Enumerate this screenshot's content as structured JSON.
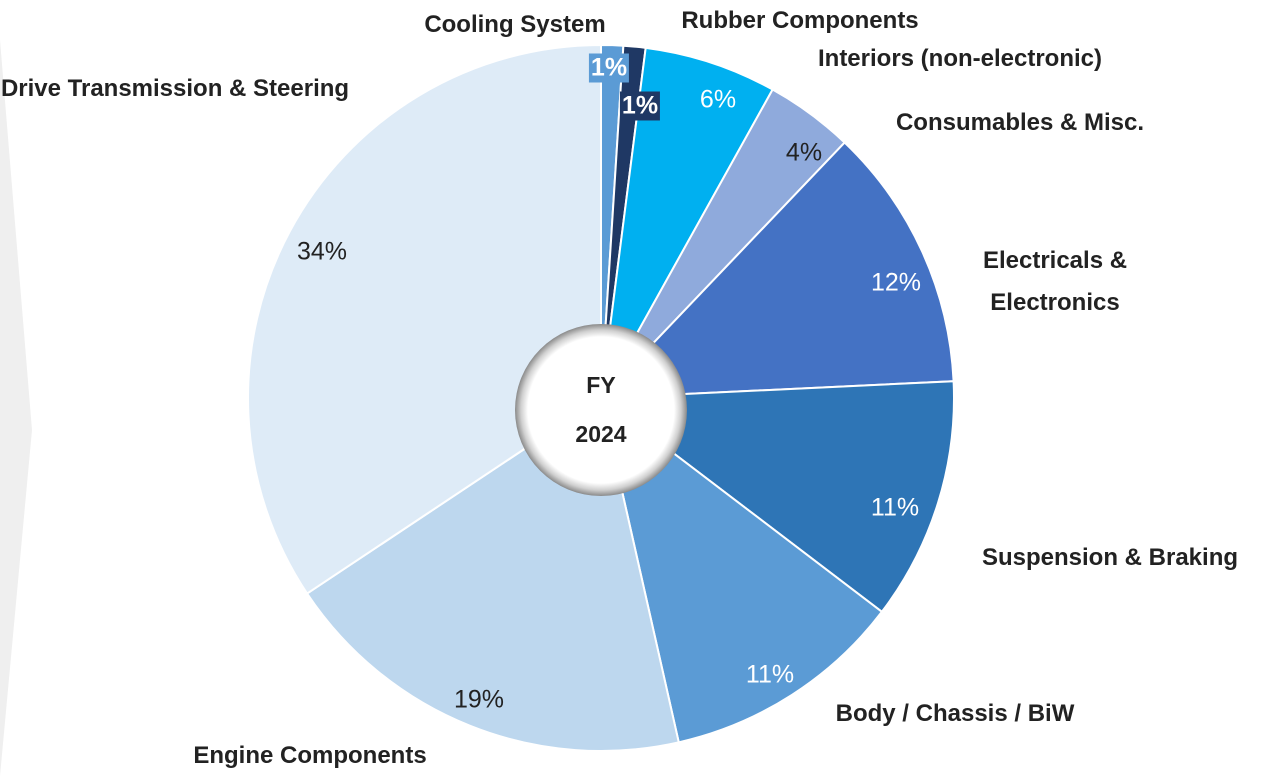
{
  "chart_data": {
    "type": "pie",
    "center_label": [
      "FY",
      "2024"
    ],
    "categories": [
      "Cooling System",
      "Rubber Components",
      "Interiors (non-electronic)",
      "Consumables & Misc.",
      "Electricals & Electronics",
      "Suspension & Braking",
      "Body / Chassis / BiW",
      "Engine Components",
      "Drive Transmission & Steering"
    ],
    "values": [
      1,
      1,
      6,
      4,
      12,
      11,
      11,
      19,
      34
    ],
    "value_labels": [
      "1%",
      "1%",
      "6%",
      "4%",
      "12%",
      "11%",
      "11%",
      "19%",
      "34%"
    ],
    "colors": [
      "#5b9bd5",
      "#1f3864",
      "#00b0f0",
      "#8faadc",
      "#4472c4",
      "#2e75b6",
      "#5b9bd5",
      "#bdd7ee",
      "#deebf7"
    ]
  }
}
